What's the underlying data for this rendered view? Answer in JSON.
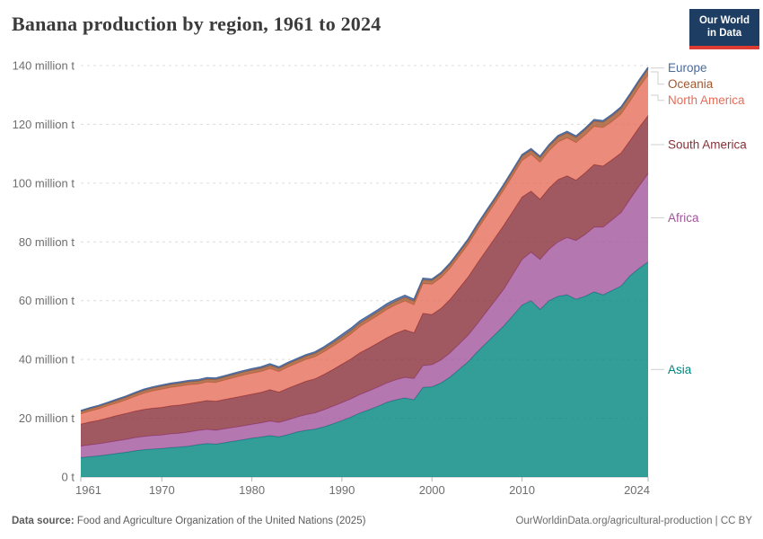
{
  "header": {
    "title": "Banana production by region, 1961 to 2024",
    "logo": {
      "line1": "Our World",
      "line2": "in Data",
      "bg": "#1d3d63",
      "accent": "#dc3c31"
    }
  },
  "footer": {
    "source_label": "Data source:",
    "source": "Food and Agriculture Organization of the United Nations (2025)",
    "credit": "OurWorldinData.org/agricultural-production | CC BY"
  },
  "chart_data": {
    "type": "area",
    "stacked": true,
    "title": "Banana production by region, 1961 to 2024",
    "xlabel": "",
    "ylabel": "",
    "unit": "million t",
    "ylim": [
      0,
      140
    ],
    "grid": "horizontal-dashed",
    "legend_position": "right-edge-labels",
    "legend_order_top_to_bottom": [
      "Europe",
      "Oceania",
      "North America",
      "South America",
      "Africa",
      "Asia"
    ],
    "x": [
      1961,
      1962,
      1963,
      1964,
      1965,
      1966,
      1967,
      1968,
      1969,
      1970,
      1971,
      1972,
      1973,
      1974,
      1975,
      1976,
      1977,
      1978,
      1979,
      1980,
      1981,
      1982,
      1983,
      1984,
      1985,
      1986,
      1987,
      1988,
      1989,
      1990,
      1991,
      1992,
      1993,
      1994,
      1995,
      1996,
      1997,
      1998,
      1999,
      2000,
      2001,
      2002,
      2003,
      2004,
      2005,
      2006,
      2007,
      2008,
      2009,
      2010,
      2011,
      2012,
      2013,
      2014,
      2015,
      2016,
      2017,
      2018,
      2019,
      2020,
      2021,
      2022,
      2023,
      2024
    ],
    "x_ticks": [
      1961,
      1970,
      1980,
      1990,
      2000,
      2010,
      2024
    ],
    "y_ticks": [
      {
        "value": 0,
        "label": "0 t"
      },
      {
        "value": 20,
        "label": "20 million t"
      },
      {
        "value": 40,
        "label": "40 million t"
      },
      {
        "value": 60,
        "label": "60 million t"
      },
      {
        "value": 80,
        "label": "80 million t"
      },
      {
        "value": 100,
        "label": "100 million t"
      },
      {
        "value": 120,
        "label": "120 million t"
      },
      {
        "value": 140,
        "label": "140 million t"
      }
    ],
    "series": [
      {
        "id": "asia",
        "name": "Asia",
        "color": "#00847e",
        "values": [
          6.6,
          6.9,
          7.2,
          7.6,
          8.0,
          8.4,
          8.9,
          9.3,
          9.5,
          9.7,
          10.0,
          10.2,
          10.5,
          11.0,
          11.4,
          11.2,
          11.7,
          12.2,
          12.7,
          13.2,
          13.6,
          14.1,
          13.7,
          14.4,
          15.3,
          15.9,
          16.3,
          17.1,
          18.1,
          19.2,
          20.4,
          21.8,
          22.9,
          24.1,
          25.4,
          26.3,
          26.9,
          26.3,
          30.5,
          30.7,
          32.0,
          34.0,
          36.6,
          39.2,
          42.5,
          45.5,
          48.5,
          51.5,
          55.0,
          58.5,
          60.0,
          57.0,
          60.0,
          61.5,
          62.0,
          60.5,
          61.5,
          63.0,
          62.0,
          63.5,
          65.0,
          68.5,
          71.0,
          73.2
        ]
      },
      {
        "id": "africa",
        "name": "Africa",
        "color": "#a2559c",
        "values": [
          3.9,
          4.0,
          4.1,
          4.2,
          4.3,
          4.4,
          4.5,
          4.5,
          4.6,
          4.6,
          4.7,
          4.7,
          4.8,
          4.8,
          4.8,
          4.7,
          4.7,
          4.7,
          4.7,
          4.7,
          4.8,
          4.9,
          4.9,
          5.0,
          5.1,
          5.3,
          5.5,
          5.8,
          6.0,
          6.1,
          6.2,
          6.3,
          6.4,
          6.5,
          6.6,
          6.8,
          7.0,
          7.2,
          7.4,
          7.5,
          7.8,
          8.2,
          8.6,
          9.0,
          9.5,
          10.5,
          11.5,
          12.5,
          14.0,
          15.5,
          16.5,
          17.0,
          17.5,
          18.5,
          19.5,
          20.0,
          21.0,
          22.0,
          23.0,
          24.0,
          25.0,
          26.0,
          28.0,
          30.0
        ]
      },
      {
        "id": "south-america",
        "name": "South America",
        "color": "#883039",
        "values": [
          7.5,
          7.8,
          8.0,
          8.3,
          8.6,
          8.8,
          9.0,
          9.2,
          9.3,
          9.4,
          9.5,
          9.6,
          9.7,
          9.7,
          9.8,
          9.9,
          10.0,
          10.1,
          10.2,
          10.3,
          10.4,
          10.7,
          10.3,
          10.8,
          11.0,
          11.4,
          11.6,
          12.0,
          12.5,
          13.1,
          13.6,
          14.2,
          14.6,
          15.0,
          15.4,
          15.8,
          16.2,
          15.6,
          17.8,
          17.1,
          17.6,
          18.2,
          19.0,
          19.8,
          20.6,
          21.0,
          21.4,
          21.8,
          21.5,
          21.3,
          20.8,
          20.5,
          20.8,
          21.2,
          21.0,
          20.5,
          21.0,
          21.3,
          20.8,
          20.5,
          20.3,
          20.0,
          20.0,
          19.8
        ]
      },
      {
        "id": "north-america",
        "name": "North America",
        "color": "#e56e5a",
        "values": [
          3.5,
          3.7,
          3.9,
          4.1,
          4.3,
          4.6,
          5.0,
          5.5,
          5.9,
          6.2,
          6.3,
          6.4,
          6.4,
          6.1,
          6.3,
          6.4,
          6.6,
          6.8,
          7.0,
          7.1,
          7.1,
          7.2,
          7.0,
          7.2,
          7.3,
          7.4,
          7.5,
          7.7,
          7.9,
          8.1,
          8.5,
          8.9,
          9.2,
          9.4,
          9.6,
          9.7,
          9.8,
          9.5,
          10.1,
          10.3,
          10.4,
          10.6,
          10.8,
          11.1,
          11.4,
          11.6,
          11.8,
          12.0,
          12.2,
          12.4,
          12.5,
          12.6,
          12.7,
          12.8,
          12.9,
          12.8,
          12.9,
          13.0,
          13.1,
          13.0,
          13.2,
          13.4,
          13.6,
          13.8
        ]
      },
      {
        "id": "oceania",
        "name": "Oceania",
        "color": "#a1562c",
        "values": [
          0.8,
          0.82,
          0.85,
          0.87,
          0.9,
          0.92,
          0.94,
          0.96,
          0.98,
          1.0,
          1.0,
          1.02,
          1.03,
          1.05,
          1.06,
          1.05,
          1.06,
          1.08,
          1.09,
          1.1,
          1.1,
          1.12,
          1.1,
          1.12,
          1.14,
          1.15,
          1.16,
          1.18,
          1.19,
          1.2,
          1.2,
          1.21,
          1.22,
          1.23,
          1.24,
          1.25,
          1.26,
          1.27,
          1.28,
          1.3,
          1.31,
          1.32,
          1.34,
          1.36,
          1.38,
          1.4,
          1.35,
          1.45,
          1.5,
          1.55,
          1.45,
          1.6,
          1.65,
          1.7,
          1.72,
          1.74,
          1.76,
          1.8,
          1.84,
          1.88,
          1.92,
          1.96,
          2.0,
          2.1
        ]
      },
      {
        "id": "europe",
        "name": "Europe",
        "color": "#4c6a9c",
        "values": [
          0.3,
          0.31,
          0.32,
          0.33,
          0.35,
          0.36,
          0.37,
          0.38,
          0.39,
          0.4,
          0.4,
          0.41,
          0.41,
          0.42,
          0.42,
          0.42,
          0.43,
          0.43,
          0.44,
          0.44,
          0.45,
          0.45,
          0.44,
          0.45,
          0.45,
          0.46,
          0.48,
          0.52,
          0.6,
          0.75,
          0.72,
          0.7,
          0.68,
          0.65,
          0.7,
          0.68,
          0.66,
          0.6,
          0.55,
          0.45,
          0.44,
          0.45,
          0.44,
          0.46,
          0.45,
          0.44,
          0.45,
          0.46,
          0.45,
          0.46,
          0.47,
          0.45,
          0.46,
          0.47,
          0.48,
          0.49,
          0.5,
          0.51,
          0.5,
          0.51,
          0.52,
          0.5,
          0.51,
          0.52
        ]
      }
    ]
  }
}
